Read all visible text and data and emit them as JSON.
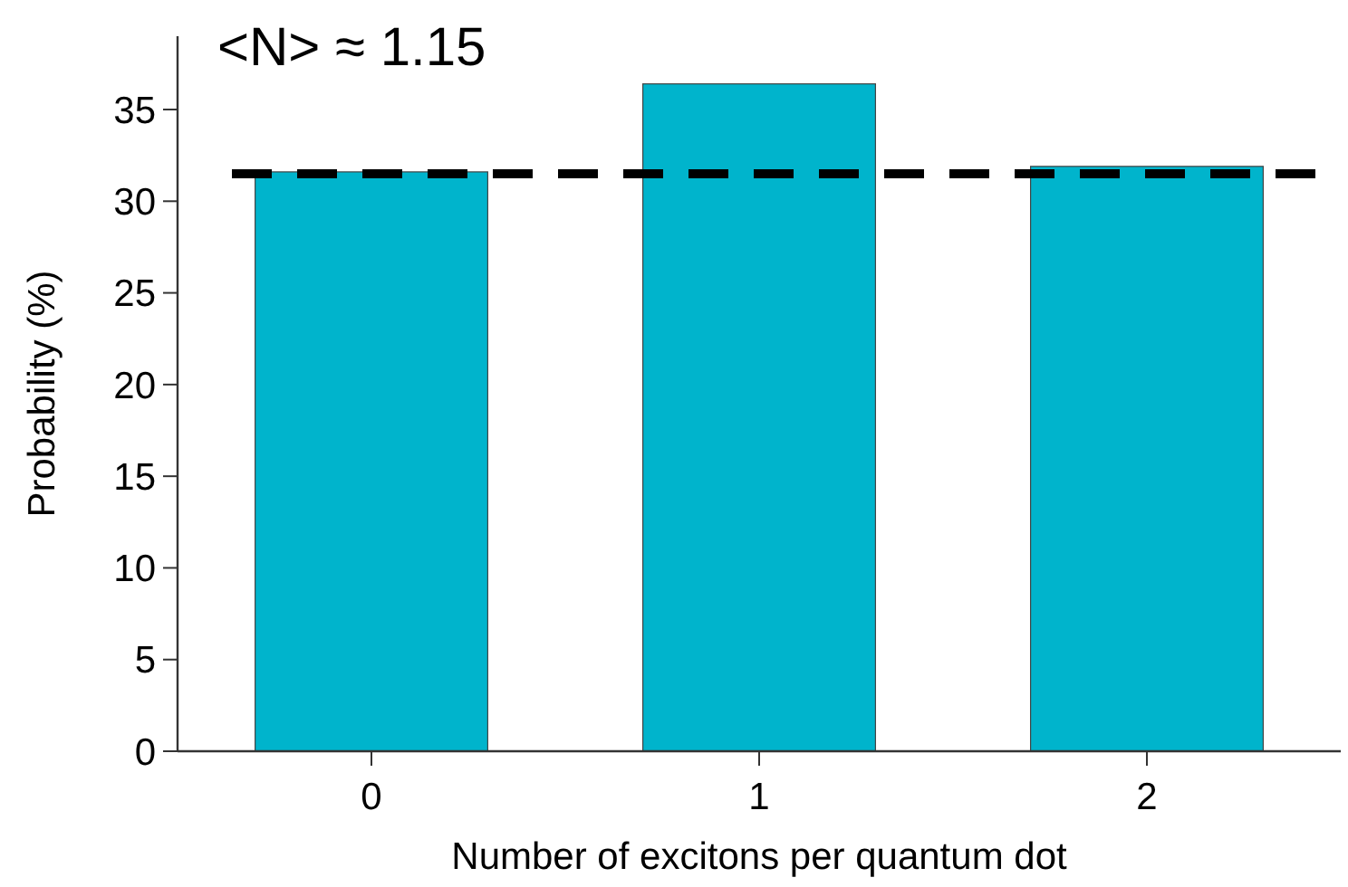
{
  "chart_data": {
    "type": "bar",
    "xlabel": "Number of excitons per quantum dot",
    "ylabel": "Probability (%)",
    "categories": [
      "0",
      "1",
      "2"
    ],
    "values": [
      31.6,
      36.4,
      31.9
    ],
    "color": "#00b4cc",
    "ylim": [
      0,
      39
    ],
    "yticks": [
      0,
      5,
      10,
      15,
      20,
      25,
      30,
      35
    ],
    "grid": false,
    "ref_lines": [
      {
        "axis": "y",
        "value": 31.5,
        "color": "#000000",
        "line_style": "dashed"
      }
    ],
    "annotations": [
      "<N> ≈ 1.15"
    ]
  }
}
